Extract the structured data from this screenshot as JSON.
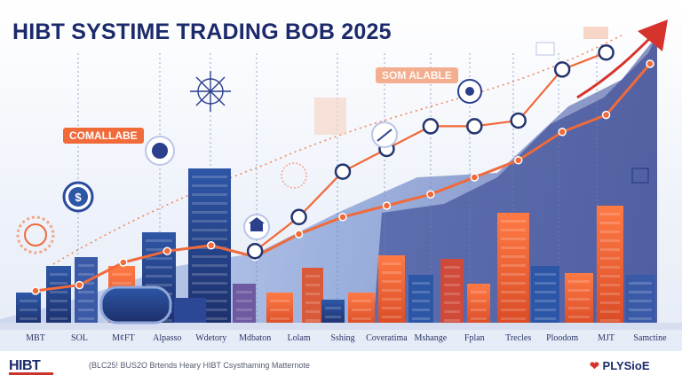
{
  "title": "HIBT SYSTIME TRADING BOB 2025",
  "callouts": {
    "left": "COMALLABE",
    "middle": "SOM ALABLE"
  },
  "axis_labels": [
    "MBT",
    "SOL",
    "M¢FT",
    "Alpasso",
    "Wdetory",
    "Mdbaton",
    "Lolam",
    "Sshing",
    "Coveratima",
    "Mshange",
    "Fplan",
    "Trecles",
    "Ploodom",
    "MJT",
    "Samctine"
  ],
  "footer": {
    "left_brand": "HIBT",
    "caption": "(BLC25! BUS2O Brtends Heary HIBT Csysthaming Matternote",
    "right_brand": "PLYSioE"
  },
  "colors": {
    "title": "#1b2a6b",
    "accent_orange": "#f06a3a",
    "trend_red": "#d7332d",
    "dark_blue": "#23356f",
    "mid_blue": "#3d5fa6"
  },
  "chart_data": {
    "type": "line",
    "categories": [
      "MBT",
      "SOL",
      "M¢FT",
      "Alpasso",
      "Wdetory",
      "Mdbaton",
      "Lolam",
      "Sshing",
      "Coveratima",
      "Mshange",
      "Fplan",
      "Trecles",
      "Ploodom",
      "MJT",
      "Samctine"
    ],
    "series": [
      {
        "values": [
          10,
          12,
          20,
          24,
          26,
          22,
          30,
          36,
          40,
          44,
          50,
          56,
          66,
          72,
          90
        ]
      },
      {
        "values": [
          null,
          null,
          null,
          null,
          null,
          24,
          36,
          52,
          60,
          68,
          68,
          70,
          88,
          94,
          null
        ]
      }
    ],
    "ylim": [
      0,
      100
    ],
    "grid": false,
    "legend": "none"
  }
}
